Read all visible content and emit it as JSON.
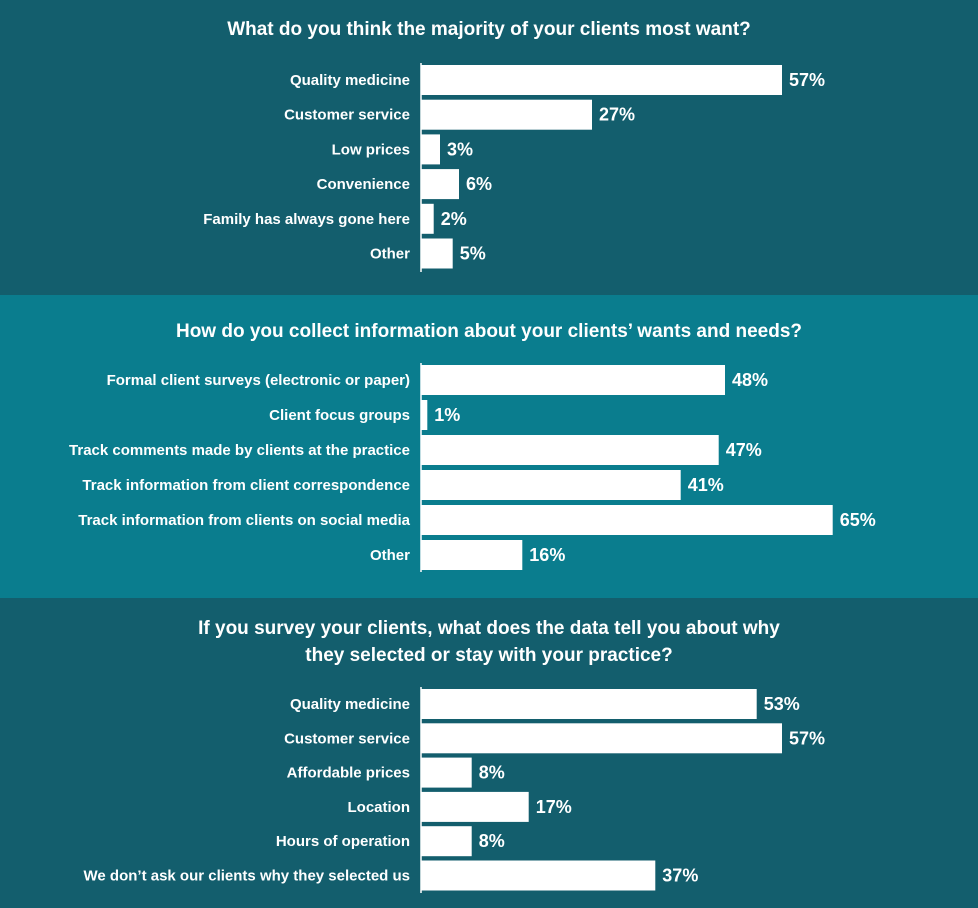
{
  "colors": {
    "panel_1": "#135e6d",
    "panel_2": "#0a7d8e",
    "panel_3": "#135e6d",
    "bar": "#ffffff",
    "text": "#ffffff",
    "axis": "#ffffff"
  },
  "chart_data": [
    {
      "type": "bar",
      "orientation": "horizontal",
      "title_lines": [
        "What do you think the majority of your clients most want?"
      ],
      "categories": [
        "Quality medicine",
        "Customer service",
        "Low prices",
        "Convenience",
        "Family has always gone here",
        "Other"
      ],
      "values": [
        57,
        27,
        3,
        6,
        2,
        5
      ],
      "value_labels": [
        "57%",
        "27%",
        "3%",
        "6%",
        "2%",
        "5%"
      ],
      "unit": "%",
      "xlim": [
        0,
        100
      ],
      "grid": false,
      "legend": "none"
    },
    {
      "type": "bar",
      "orientation": "horizontal",
      "title_lines": [
        "How do you collect information about your clients’ wants and needs?"
      ],
      "categories": [
        "Formal client surveys (electronic or paper)",
        "Client focus groups",
        "Track comments made by clients at the practice",
        "Track information from client correspondence",
        "Track information from clients on social media",
        "Other"
      ],
      "values": [
        48,
        1,
        47,
        41,
        65,
        16
      ],
      "value_labels": [
        "48%",
        "1%",
        "47%",
        "41%",
        "65%",
        "16%"
      ],
      "unit": "%",
      "xlim": [
        0,
        100
      ],
      "grid": false,
      "legend": "none"
    },
    {
      "type": "bar",
      "orientation": "horizontal",
      "title_lines": [
        "If you survey your clients, what does the data tell you about why",
        "they selected or stay with your practice?"
      ],
      "categories": [
        "Quality medicine",
        "Customer service",
        "Affordable prices",
        "Location",
        "Hours of operation",
        "We don’t ask our clients why they selected us"
      ],
      "values": [
        53,
        57,
        8,
        17,
        8,
        37
      ],
      "value_labels": [
        "53%",
        "57%",
        "8%",
        "17%",
        "8%",
        "37%"
      ],
      "unit": "%",
      "xlim": [
        0,
        100
      ],
      "grid": false,
      "legend": "none"
    }
  ]
}
